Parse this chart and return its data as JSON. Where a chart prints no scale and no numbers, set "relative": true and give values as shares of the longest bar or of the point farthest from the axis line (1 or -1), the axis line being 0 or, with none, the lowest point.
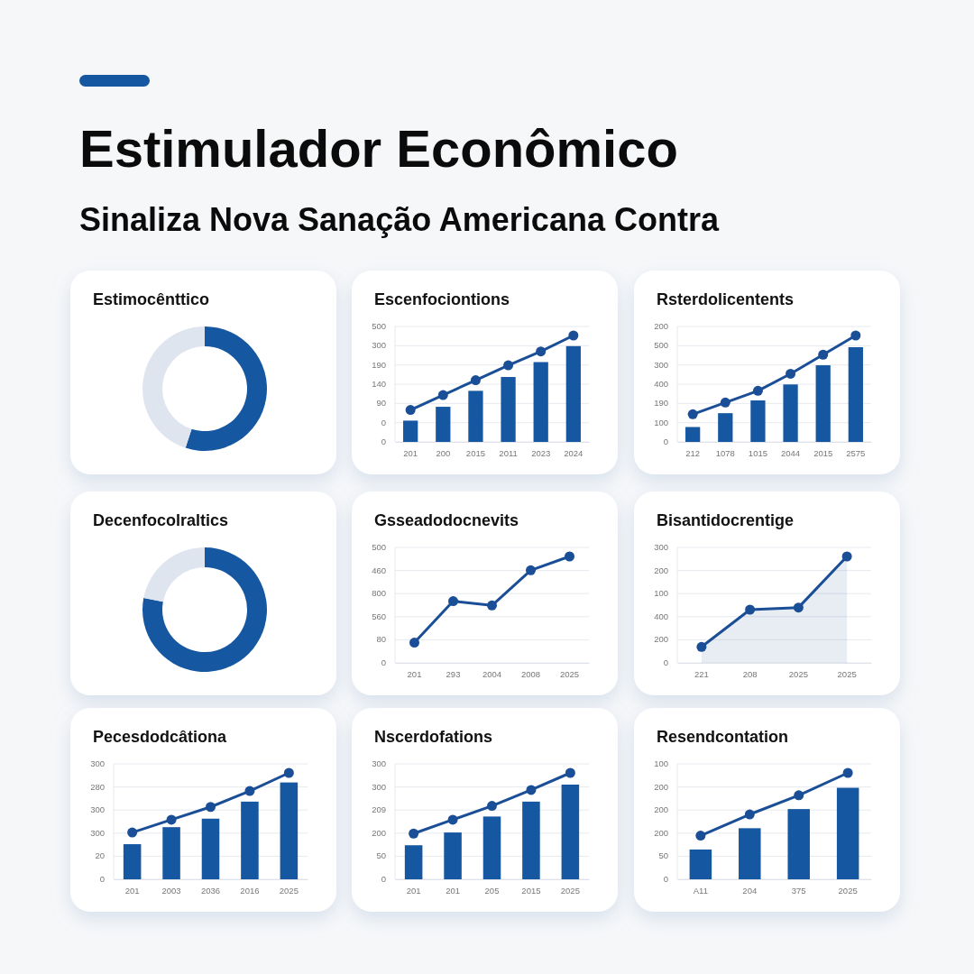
{
  "chart_data": [
    {
      "type": "other",
      "title": "Estimulador Econômico",
      "subtitle": "Sinaliza Nova Sanação Americana Contra"
    },
    {
      "type": "donut",
      "title": "Estimocênttico",
      "categories": [
        null,
        null
      ],
      "values": [
        55,
        45
      ],
      "colors": [
        "#1657a2",
        "#dfe5ee"
      ]
    },
    {
      "type": "bar",
      "title": "Escenfociontions",
      "categories": [
        "201",
        "200",
        "2015",
        "2011",
        "2023",
        "2024"
      ],
      "relative": true,
      "annotations": [
        "0",
        "0",
        "90",
        "140",
        "190",
        "300",
        "500"
      ],
      "grid": "y",
      "marker": "circle",
      "series": [
        {
          "type": "bar",
          "color": "#1657a2",
          "values": [
            0.2,
            0.33,
            0.48,
            0.61,
            0.75,
            0.9
          ]
        },
        {
          "type": "line",
          "color": "#1a4e96",
          "values": [
            0.3,
            0.44,
            0.58,
            0.72,
            0.85,
            1
          ]
        }
      ]
    },
    {
      "type": "bar",
      "title": "Rsterdolicentents",
      "categories": [
        "212",
        "1078",
        "1015",
        "2044",
        "2015",
        "2575"
      ],
      "relative": true,
      "annotations": [
        "0",
        "100",
        "190",
        "400",
        "300",
        "500",
        "200"
      ],
      "grid": "y",
      "marker": "circle",
      "series": [
        {
          "type": "bar",
          "color": "#1657a2",
          "values": [
            0.14,
            0.27,
            0.39,
            0.54,
            0.72,
            0.89
          ]
        },
        {
          "type": "line",
          "color": "#1a4e96",
          "values": [
            0.26,
            0.37,
            0.48,
            0.64,
            0.82,
            1
          ]
        }
      ]
    },
    {
      "type": "donut",
      "title": "Decenfocolraltics",
      "categories": [
        null,
        null
      ],
      "values": [
        78,
        22
      ],
      "colors": [
        "#1657a2",
        "#dfe5ee"
      ]
    },
    {
      "type": "line",
      "title": "Gsseadodocnevits",
      "categories": [
        "201",
        "293",
        "2004",
        "2008",
        "2025"
      ],
      "relative": true,
      "annotations": [
        "0",
        "80",
        "560",
        "800",
        "460",
        "500"
      ],
      "grid": "y",
      "marker": "circle",
      "series": [
        {
          "color": "#1a4e96",
          "values": [
            0.19,
            0.58,
            0.54,
            0.87,
            1
          ]
        }
      ]
    },
    {
      "type": "area",
      "title": "Bisantidocrentige",
      "categories": [
        "221",
        "208",
        "2025",
        "2025"
      ],
      "relative": true,
      "annotations": [
        "0",
        "200",
        "400",
        "100",
        "200",
        "300"
      ],
      "grid": "y",
      "marker": "circle",
      "series": [
        {
          "color": "#1a4e96",
          "values": [
            0.15,
            0.5,
            0.52,
            1
          ]
        }
      ]
    },
    {
      "type": "bar",
      "title": "Pecesdodcâtiona",
      "categories": [
        "201",
        "2003",
        "2036",
        "2016",
        "2025"
      ],
      "relative": true,
      "annotations": [
        "0",
        "20",
        "300",
        "300",
        "280",
        "300"
      ],
      "grid": "y",
      "marker": "circle",
      "series": [
        {
          "type": "bar",
          "color": "#1657a2",
          "values": [
            0.33,
            0.49,
            0.57,
            0.73,
            0.91
          ]
        },
        {
          "type": "line",
          "color": "#1a4e96",
          "values": [
            0.44,
            0.56,
            0.68,
            0.83,
            1
          ]
        }
      ]
    },
    {
      "type": "bar",
      "title": "Nscerdofations",
      "categories": [
        "201",
        "201",
        "205",
        "2015",
        "2025"
      ],
      "relative": true,
      "annotations": [
        "0",
        "50",
        "200",
        "209",
        "300",
        "300"
      ],
      "grid": "y",
      "marker": "circle",
      "series": [
        {
          "type": "bar",
          "color": "#1657a2",
          "values": [
            0.32,
            0.44,
            0.59,
            0.73,
            0.89
          ]
        },
        {
          "type": "line",
          "color": "#1a4e96",
          "values": [
            0.43,
            0.56,
            0.69,
            0.84,
            1
          ]
        }
      ]
    },
    {
      "type": "bar",
      "title": "Resendcontation",
      "categories": [
        "A11",
        "204",
        "375",
        "2025"
      ],
      "relative": true,
      "annotations": [
        "0",
        "50",
        "200",
        "200",
        "200",
        "100"
      ],
      "grid": "y",
      "marker": "circle",
      "series": [
        {
          "type": "bar",
          "color": "#1657a2",
          "values": [
            0.28,
            0.48,
            0.66,
            0.86
          ]
        },
        {
          "type": "line",
          "color": "#1a4e96",
          "values": [
            0.41,
            0.61,
            0.79,
            1
          ]
        }
      ]
    }
  ]
}
